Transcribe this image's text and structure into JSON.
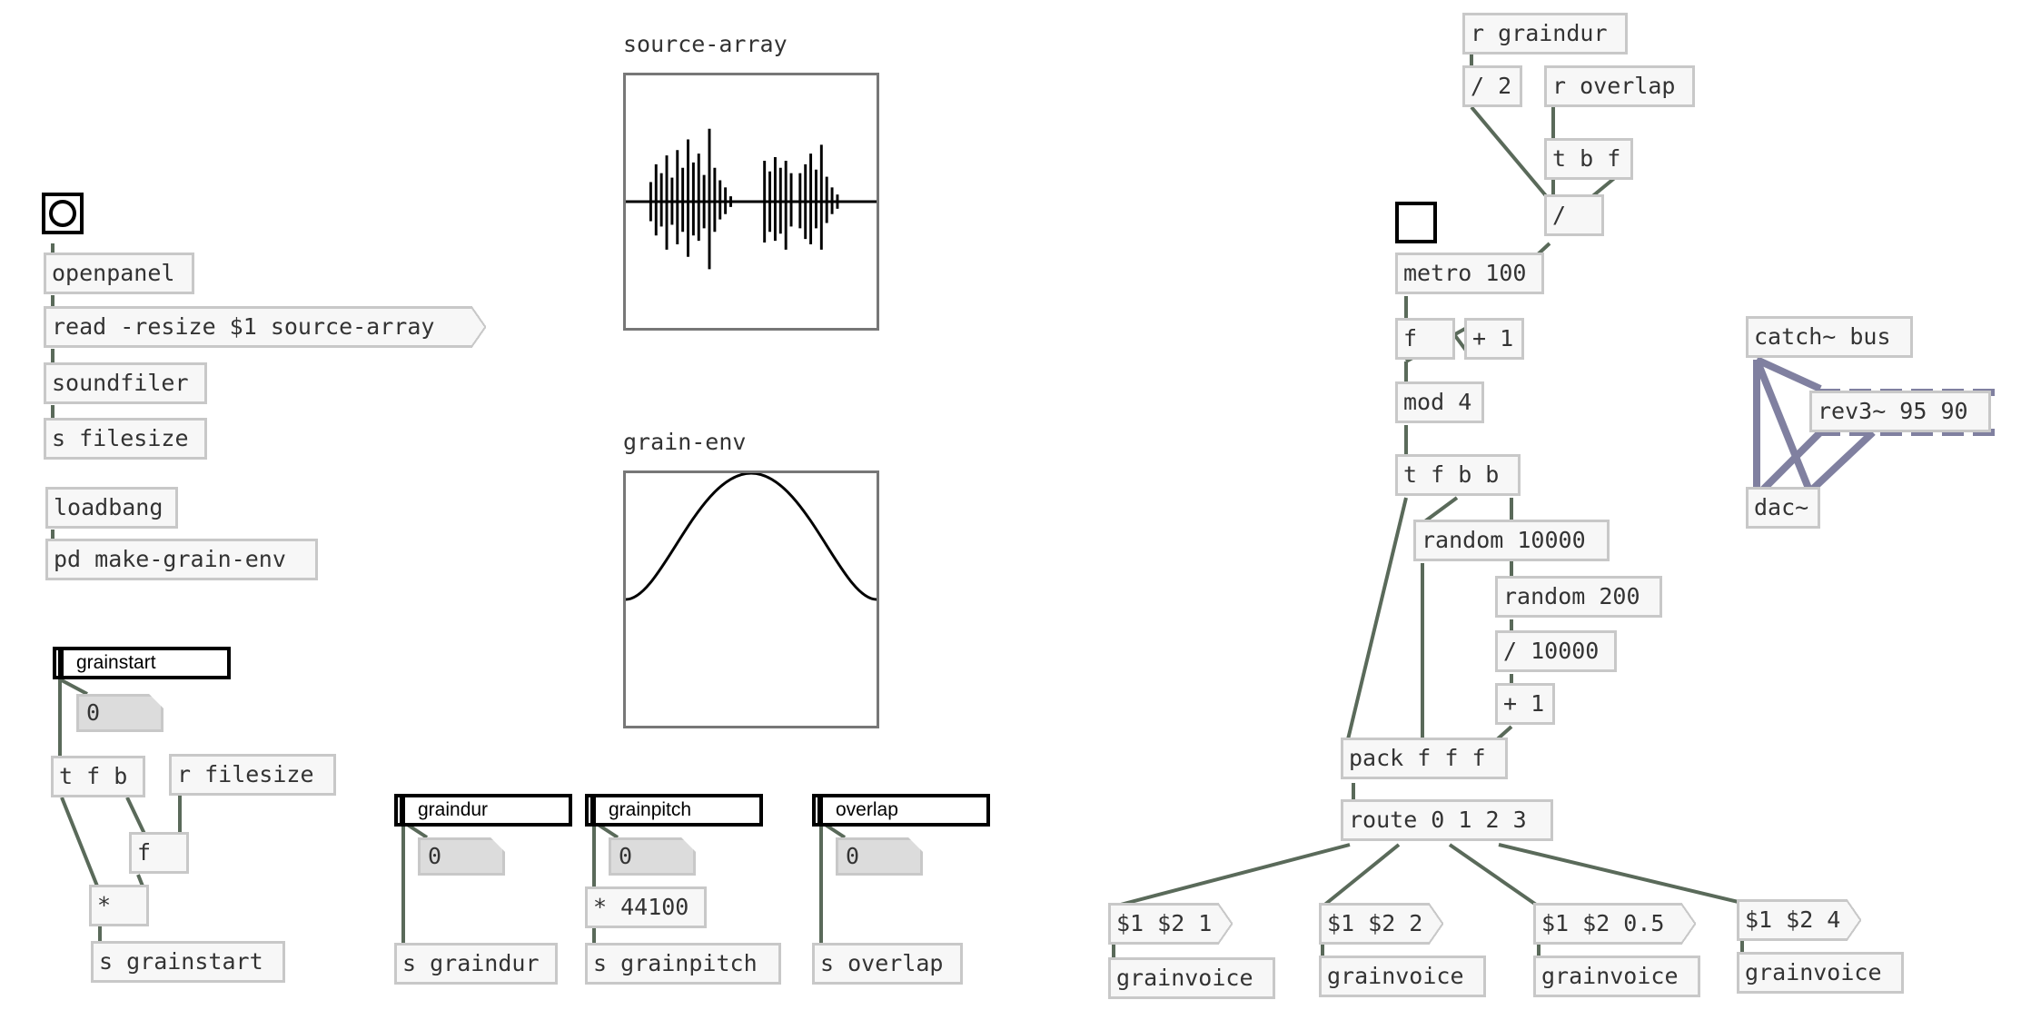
{
  "patch": {
    "labels": {
      "source_array": "source-array",
      "grain_env": "grain-env"
    },
    "objects": {
      "openpanel": "openpanel",
      "read_msg": "read -resize $1 source-array",
      "soundfiler": "soundfiler",
      "s_filesize": "s filesize",
      "loadbang": "loadbang",
      "pd_make_grain_env": "pd make-grain-env",
      "t_f_b_left": "t f b",
      "r_filesize": "r filesize",
      "f_left": "f",
      "mult_left": "*",
      "s_grainstart": "s grainstart",
      "s_graindur": "s graindur",
      "mult_44100": "* 44100",
      "s_grainpitch": "s grainpitch",
      "s_overlap": "s overlap",
      "r_graindur": "r graindur",
      "div_2": "/ 2",
      "r_overlap": "r overlap",
      "t_b_f": "t b f",
      "div": "/",
      "metro": "metro 100",
      "f_counter": "f",
      "plus_1_counter": "+ 1",
      "mod_4": "mod 4",
      "t_f_b_b": "t f b b",
      "random_10000": "random 10000",
      "random_200": "random 200",
      "div_10000": "/ 10000",
      "plus_1": "+ 1",
      "pack": "pack f f f",
      "route": "route 0 1 2 3",
      "msg_1": "$1 $2 1",
      "msg_2": "$1 $2 2",
      "msg_05": "$1 $2 0.5",
      "msg_4": "$1 $2 4",
      "grainvoice_1": "grainvoice",
      "grainvoice_2": "grainvoice",
      "grainvoice_3": "grainvoice",
      "grainvoice_4": "grainvoice",
      "catch_bus": "catch~ bus",
      "rev3": "rev3~ 95 90",
      "dac": "dac~"
    },
    "sliders": {
      "grainstart": "grainstart",
      "graindur": "graindur",
      "grainpitch": "grainpitch",
      "overlap": "overlap"
    },
    "numbers": {
      "grainstart_value": "0",
      "graindur_value": "0",
      "grainpitch_value": "0",
      "overlap_value": "0"
    }
  },
  "colors": {
    "control_wire": "#5a6a5a",
    "signal_wire": "#8080a0",
    "box_border": "#c8c8c8"
  }
}
